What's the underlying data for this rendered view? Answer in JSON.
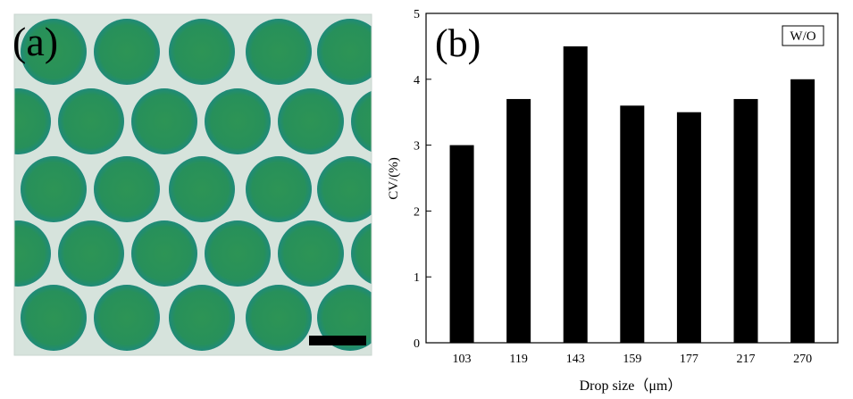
{
  "panel_a": {
    "label": "(a)",
    "droplet_color": "#2e9458",
    "background_color": "#d6e3dc",
    "scale_bar_color": "#000000"
  },
  "panel_b": {
    "label": "(b)"
  },
  "chart_data": {
    "type": "bar",
    "categories": [
      "103",
      "119",
      "143",
      "159",
      "177",
      "217",
      "270"
    ],
    "values": [
      3.0,
      3.7,
      4.5,
      3.6,
      3.5,
      3.7,
      4.0
    ],
    "xlabel": "Drop size（μm）",
    "ylabel": "CV/(%)",
    "ylim": [
      0,
      5
    ],
    "yticks": [
      "0",
      "1",
      "2",
      "3",
      "4",
      "5"
    ],
    "legend": "W/O",
    "legend_position": "top-right",
    "grid": false,
    "bar_color": "#000000"
  }
}
